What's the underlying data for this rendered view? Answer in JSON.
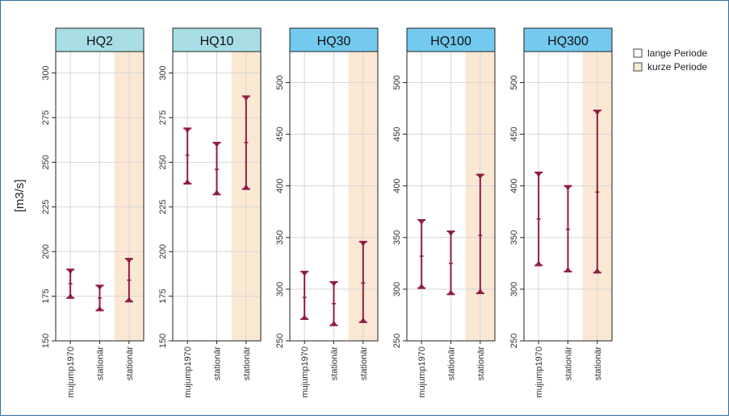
{
  "colors": {
    "strip_light": "#a8dde6",
    "strip_bright": "#73c9ee",
    "short_period_fill": "#fbe8d3",
    "marker": "#8f1b45",
    "grid": "#d6d6d6",
    "frame": "#2f6f9f"
  },
  "chart_data": {
    "type": "interval",
    "ylabel": "[m3/s]",
    "legend": {
      "placement": "top-right",
      "items": [
        {
          "label": "lange Periode",
          "fill": "#ffffff"
        },
        {
          "label": "kurze Periode",
          "fill": "#fbe8d3"
        }
      ]
    },
    "grid": true,
    "panels": [
      {
        "title": "HQ2",
        "strip_color": "#a8dde6",
        "ylim": [
          150,
          312
        ],
        "yticks": [
          150,
          175,
          200,
          225,
          250,
          275,
          300
        ],
        "categories": [
          "mujump1970",
          "stationär",
          "stationär"
        ],
        "short_period": [
          false,
          false,
          true
        ],
        "lower": [
          174,
          167,
          172
        ],
        "median": [
          182,
          174,
          184
        ],
        "upper": [
          190,
          181,
          196
        ]
      },
      {
        "title": "HQ10",
        "strip_color": "#a8dde6",
        "ylim": [
          150,
          312
        ],
        "yticks": [
          150,
          175,
          200,
          225,
          250,
          275,
          300
        ],
        "categories": [
          "mujump1970",
          "stationär",
          "stationär"
        ],
        "short_period": [
          false,
          false,
          true
        ],
        "lower": [
          238,
          232,
          235
        ],
        "median": [
          254,
          246,
          261
        ],
        "upper": [
          269,
          261,
          287
        ]
      },
      {
        "title": "HQ30",
        "strip_color": "#73c9ee",
        "ylim": [
          250,
          530
        ],
        "yticks": [
          250,
          300,
          350,
          400,
          450,
          500
        ],
        "categories": [
          "mujump1970",
          "stationär",
          "stationär"
        ],
        "short_period": [
          false,
          false,
          true
        ],
        "lower": [
          271,
          265,
          268
        ],
        "median": [
          292,
          286,
          306
        ],
        "upper": [
          317,
          307,
          346
        ]
      },
      {
        "title": "HQ100",
        "strip_color": "#73c9ee",
        "ylim": [
          250,
          530
        ],
        "yticks": [
          250,
          300,
          350,
          400,
          450,
          500
        ],
        "categories": [
          "mujump1970",
          "stationär",
          "stationär"
        ],
        "short_period": [
          false,
          false,
          true
        ],
        "lower": [
          301,
          295,
          296
        ],
        "median": [
          332,
          325,
          352
        ],
        "upper": [
          367,
          356,
          411
        ]
      },
      {
        "title": "HQ300",
        "strip_color": "#73c9ee",
        "ylim": [
          250,
          530
        ],
        "yticks": [
          250,
          300,
          350,
          400,
          450,
          500
        ],
        "categories": [
          "mujump1970",
          "stationär",
          "stationär"
        ],
        "short_period": [
          false,
          false,
          true
        ],
        "lower": [
          323,
          317,
          316
        ],
        "median": [
          368,
          358,
          394
        ],
        "upper": [
          413,
          400,
          473
        ]
      }
    ]
  }
}
